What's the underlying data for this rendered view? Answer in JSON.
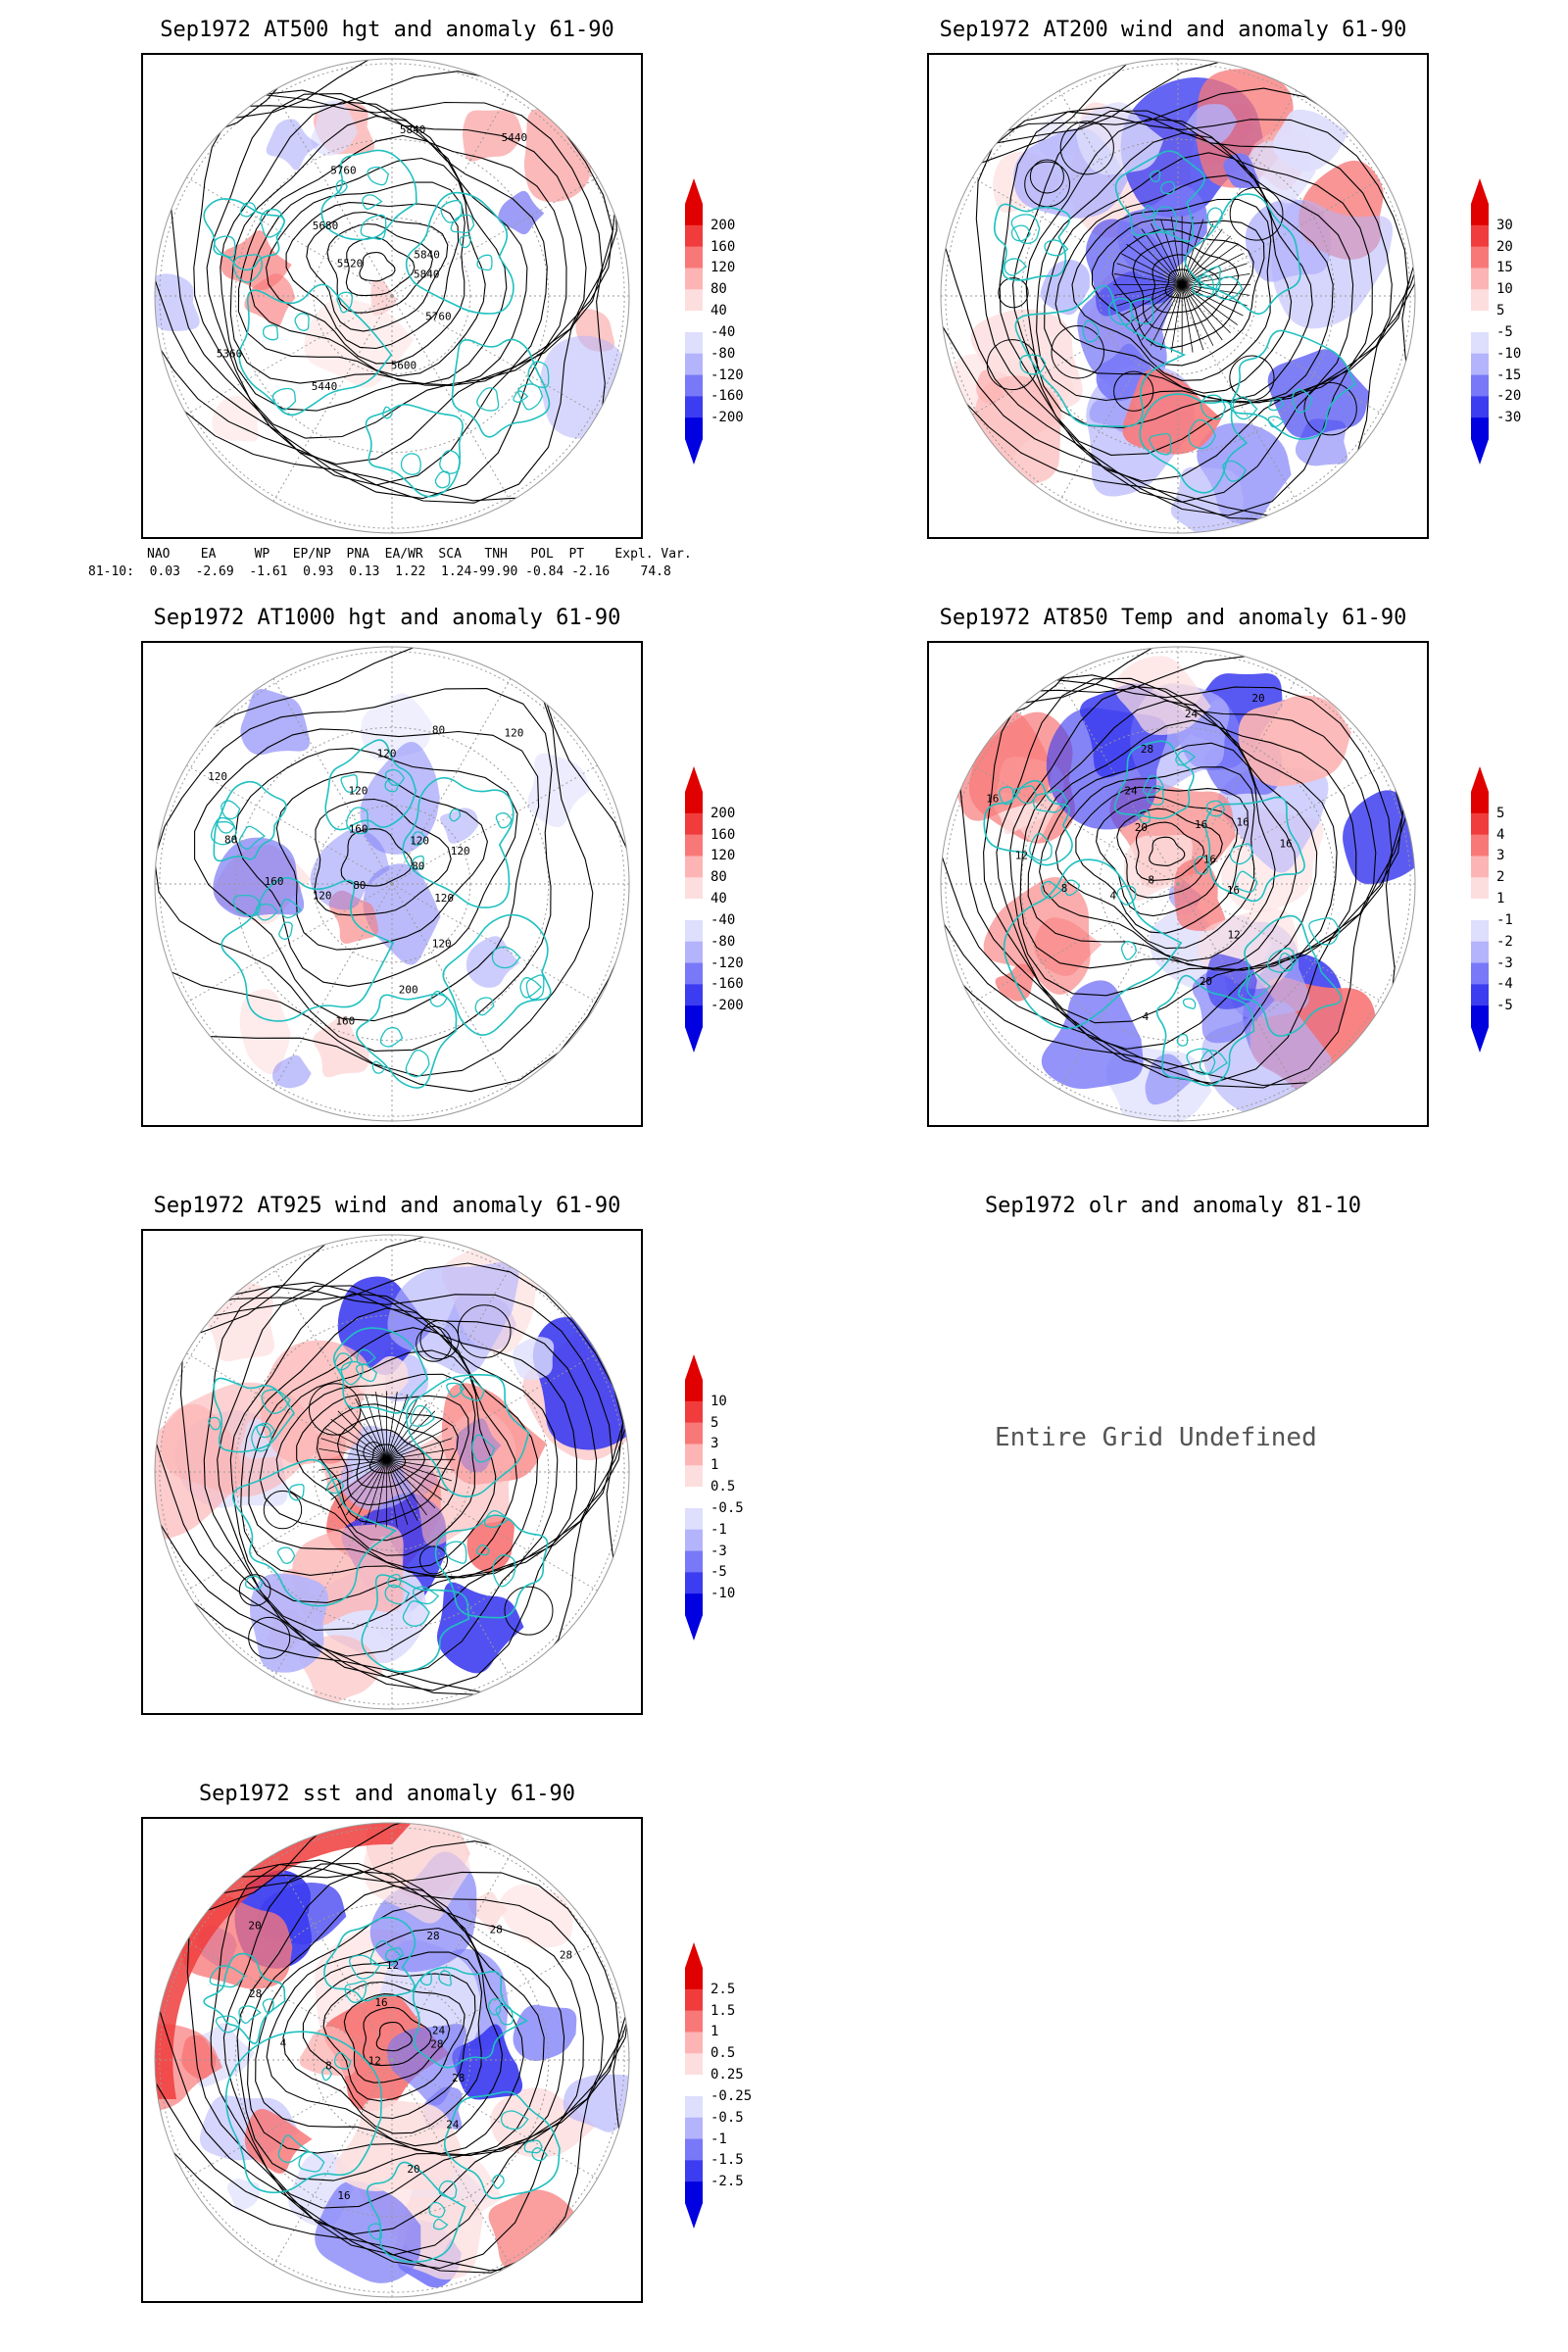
{
  "panels": {
    "p500": {
      "title": "Sep1972 AT500 hgt and anomaly 61-90",
      "contour_labels": [
        "5840",
        "5760",
        "5600",
        "5440",
        "5360",
        "5520",
        "5680",
        "5760",
        "5840",
        "5440",
        "5840"
      ]
    },
    "p200": {
      "title": "Sep1972 AT200 wind and anomaly 61-90"
    },
    "p1000": {
      "title": "Sep1972 AT1000 hgt and anomaly 61-90",
      "contour_labels": [
        "80",
        "120",
        "120",
        "200",
        "160",
        "80",
        "120",
        "160",
        "80",
        "120",
        "160",
        "120",
        "120",
        "80",
        "120",
        "120",
        "120"
      ]
    },
    "p850": {
      "title": "Sep1972 AT850 Temp and anomaly 61-90",
      "contour_labels": [
        "16",
        "16",
        "12",
        "20",
        "4",
        "8",
        "4",
        "8",
        "12",
        "16",
        "20",
        "24",
        "28",
        "24",
        "20",
        "16",
        "16",
        "16"
      ]
    },
    "p925": {
      "title": "Sep1972 AT925 wind and anomaly 61-90"
    },
    "polr": {
      "title": "Sep1972 olr and anomaly 81-10",
      "message": "Entire Grid Undefined"
    },
    "psst": {
      "title": "Sep1972 sst and anomaly 61-90",
      "contour_labels": [
        "28",
        "28",
        "24",
        "20",
        "16",
        "12",
        "8",
        "4",
        "28",
        "20",
        "16",
        "12",
        "28",
        "28",
        "28",
        "24"
      ]
    }
  },
  "colorbars": {
    "p500": [
      "200",
      "160",
      "120",
      "80",
      "40",
      "-40",
      "-80",
      "-120",
      "-160",
      "-200"
    ],
    "p200": [
      "30",
      "20",
      "15",
      "10",
      "5",
      "-5",
      "-10",
      "-15",
      "-20",
      "-30"
    ],
    "p1000": [
      "200",
      "160",
      "120",
      "80",
      "40",
      "-40",
      "-80",
      "-120",
      "-160",
      "-200"
    ],
    "p850": [
      "5",
      "4",
      "3",
      "2",
      "1",
      "-1",
      "-2",
      "-3",
      "-4",
      "-5"
    ],
    "p925": [
      "10",
      "5",
      "3",
      "1",
      "0.5",
      "-0.5",
      "-1",
      "-3",
      "-5",
      "-10"
    ],
    "psst": [
      "2.5",
      "1.5",
      "1",
      "0.5",
      "0.25",
      "-0.25",
      "-0.5",
      "-1",
      "-1.5",
      "-2.5"
    ]
  },
  "colorbar_colors": [
    "#e00000",
    "#f03c3c",
    "#f87878",
    "#fcb4b4",
    "#fddede",
    "#ffffff",
    "#dedefd",
    "#b4b4fc",
    "#7878f8",
    "#3c3cf0",
    "#0000e0"
  ],
  "indices": {
    "header": "NAO    EA     WP   EP/NP  PNA  EA/WR  SCA   TNH   POL  PT    Expl. Var.",
    "values": "81-10:  0.03  -2.69  -1.61  0.93  0.13  1.22  1.24-99.90 -0.84 -2.16    74.8"
  },
  "colors": {
    "coast": "#20c0c0",
    "contour": "#000000",
    "grid": "#9a9a9a"
  }
}
